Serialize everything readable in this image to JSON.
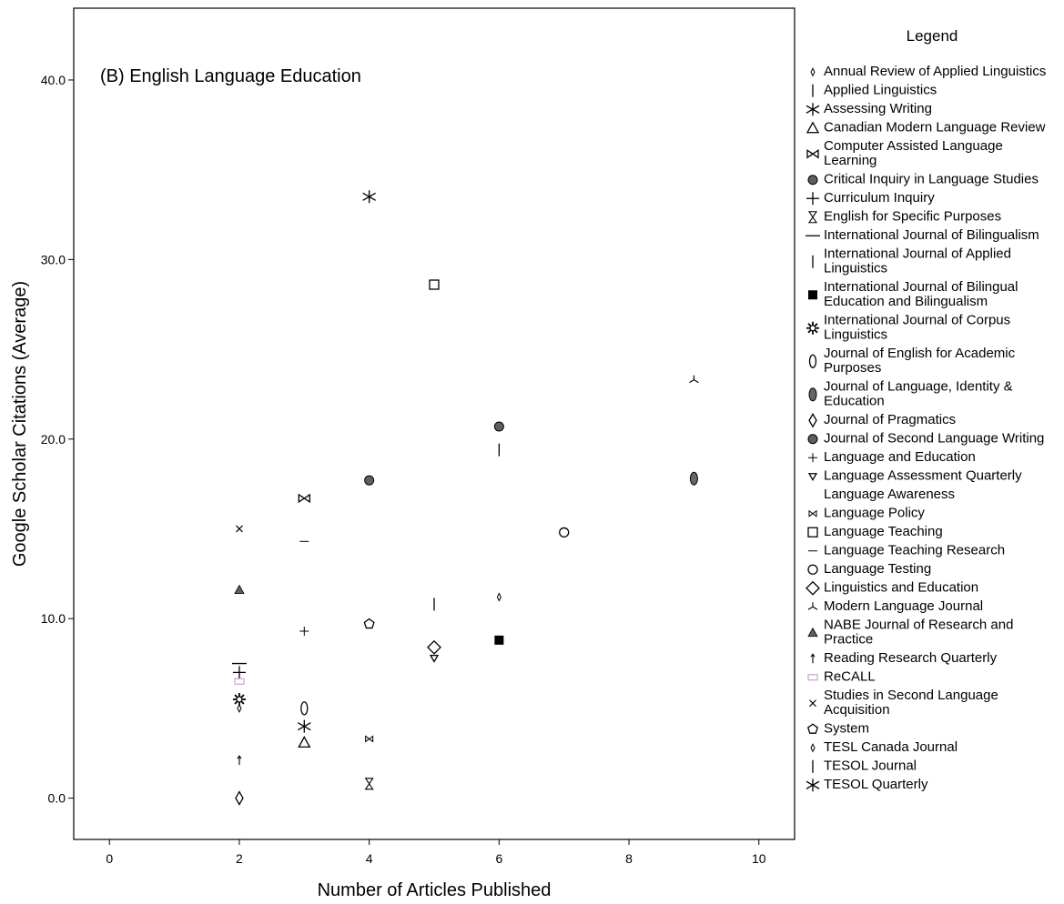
{
  "chart_data": {
    "type": "scatter",
    "title": "(B) English Language Education",
    "xlabel": "Number of Articles Published",
    "ylabel": "Google Scholar Citations (Average)",
    "xlim": [
      -0.55,
      10.55
    ],
    "ylim": [
      -2.3,
      44.0
    ],
    "x_ticks": [
      0,
      2,
      4,
      6,
      8,
      10
    ],
    "x_tick_labels": [
      "0",
      "2",
      "4",
      "6",
      "8",
      "10"
    ],
    "y_ticks": [
      0,
      10,
      20,
      30,
      40
    ],
    "y_tick_labels": [
      "0.0",
      "10.0",
      "20.0",
      "30.0",
      "40.0"
    ],
    "grid": false,
    "legend_title": "Legend",
    "legend_position": "right",
    "series": [
      {
        "name": "Annual Review of Applied Linguistics",
        "marker": "small-diamond",
        "points": [
          {
            "x": 2,
            "y": 5.0
          }
        ]
      },
      {
        "name": "Applied Linguistics",
        "marker": "vline",
        "points": [
          {
            "x": 6,
            "y": 19.4
          }
        ]
      },
      {
        "name": "Assessing Writing",
        "marker": "asterisk",
        "points": [
          {
            "x": 3,
            "y": 4.0
          }
        ]
      },
      {
        "name": "Canadian Modern Language Review",
        "marker": "triangle-up",
        "points": [
          {
            "x": 3,
            "y": 3.1
          }
        ]
      },
      {
        "name": "Computer Assisted Language Learning",
        "marker": "bowtie",
        "points": [
          {
            "x": 3,
            "y": 16.7
          }
        ]
      },
      {
        "name": "Critical Inquiry in Language Studies",
        "marker": "filled-circle",
        "points": [
          {
            "x": 4,
            "y": 17.7
          }
        ]
      },
      {
        "name": "Curriculum Inquiry",
        "marker": "plus",
        "points": [
          {
            "x": 2,
            "y": 7.0
          }
        ]
      },
      {
        "name": "English for Specific Purposes",
        "marker": "hourglass",
        "points": [
          {
            "x": 4,
            "y": 0.8
          }
        ]
      },
      {
        "name": "International Journal of Bilingualism",
        "marker": "hline",
        "points": [
          {
            "x": 2,
            "y": 7.5
          }
        ]
      },
      {
        "name": "International Journal of Applied Linguistics",
        "marker": "vline",
        "points": [
          {
            "x": 5,
            "y": 10.8
          }
        ]
      },
      {
        "name": "International Journal of Bilingual Education and Bilingualism",
        "marker": "filled-square",
        "points": [
          {
            "x": 6,
            "y": 8.8
          }
        ]
      },
      {
        "name": "International Journal of Corpus Linguistics",
        "marker": "star-burst",
        "points": [
          {
            "x": 2,
            "y": 5.5
          }
        ]
      },
      {
        "name": "Journal of English for Academic Purposes",
        "marker": "oval",
        "points": [
          {
            "x": 3,
            "y": 5.0
          }
        ]
      },
      {
        "name": "Journal of Language, Identity & Education",
        "marker": "filled-oval",
        "points": [
          {
            "x": 9,
            "y": 17.8
          }
        ]
      },
      {
        "name": "Journal of Pragmatics",
        "marker": "diamond-tall",
        "points": [
          {
            "x": 2,
            "y": 0.0
          }
        ]
      },
      {
        "name": "Journal of Second Language Writing",
        "marker": "filled-circle",
        "points": [
          {
            "x": 6,
            "y": 20.7
          }
        ]
      },
      {
        "name": "Language and Education",
        "marker": "small-plus",
        "points": [
          {
            "x": 3,
            "y": 9.3
          }
        ]
      },
      {
        "name": "Language Assessment Quarterly",
        "marker": "triangle-down",
        "points": [
          {
            "x": 5,
            "y": 7.8
          }
        ]
      },
      {
        "name": "Language Awareness",
        "marker": "none",
        "points": []
      },
      {
        "name": "Language Policy",
        "marker": "small-bowtie",
        "points": [
          {
            "x": 4,
            "y": 3.3
          }
        ]
      },
      {
        "name": "Language Teaching",
        "marker": "square",
        "points": [
          {
            "x": 5,
            "y": 28.6
          }
        ]
      },
      {
        "name": "Language Teaching Research",
        "marker": "dash",
        "points": [
          {
            "x": 3,
            "y": 14.3
          }
        ]
      },
      {
        "name": "Language Testing",
        "marker": "circle",
        "points": [
          {
            "x": 7,
            "y": 14.8
          }
        ]
      },
      {
        "name": "Linguistics and Education",
        "marker": "diamond",
        "points": [
          {
            "x": 5,
            "y": 8.4
          }
        ]
      },
      {
        "name": "Modern Language Journal",
        "marker": "tri-spoke",
        "points": [
          {
            "x": 9,
            "y": 23.3
          }
        ]
      },
      {
        "name": "NABE Journal of Research and Practice",
        "marker": "filled-triangle",
        "points": [
          {
            "x": 2,
            "y": 11.6
          }
        ]
      },
      {
        "name": "Reading Research Quarterly",
        "marker": "arrow-up",
        "points": [
          {
            "x": 2,
            "y": 2.1
          }
        ]
      },
      {
        "name": "ReCALL",
        "marker": "open-rect",
        "color": "#c8a3cf",
        "points": [
          {
            "x": 2,
            "y": 6.5
          }
        ]
      },
      {
        "name": "Studies in Second Language Acquisition",
        "marker": "x",
        "points": [
          {
            "x": 2,
            "y": 15.0
          }
        ]
      },
      {
        "name": "System",
        "marker": "pentagon",
        "points": [
          {
            "x": 4,
            "y": 9.7
          }
        ]
      },
      {
        "name": "TESL Canada Journal",
        "marker": "small-diamond",
        "points": [
          {
            "x": 6,
            "y": 11.2
          }
        ]
      },
      {
        "name": "TESOL Journal",
        "marker": "vline",
        "points": []
      },
      {
        "name": "TESOL Quarterly",
        "marker": "asterisk",
        "points": [
          {
            "x": 4,
            "y": 33.5
          }
        ]
      }
    ]
  }
}
